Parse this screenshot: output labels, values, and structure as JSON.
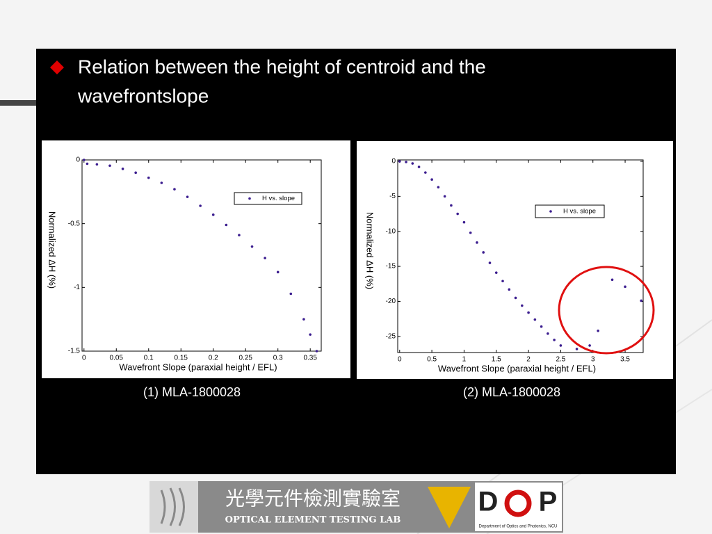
{
  "slide": {
    "title_lines": [
      "Relation between the height of centroid and the",
      "wavefrontslope"
    ],
    "captions": [
      "(1) MLA-1800028",
      "(2) MLA-1800028"
    ]
  },
  "chart_data": [
    {
      "type": "scatter",
      "xlabel": "Wavefront Slope (paraxial height / EFL)",
      "ylabel": "Normalized  ΔH (%)",
      "xlim": [
        -0.003,
        0.367
      ],
      "ylim": [
        -1.5,
        0
      ],
      "xticks": [
        0,
        0.05,
        0.1,
        0.15,
        0.2,
        0.25,
        0.3,
        0.35
      ],
      "yticks": [
        0,
        -0.5,
        -1,
        -1.5
      ],
      "legend": "upper right",
      "grid": false,
      "series": [
        {
          "name": "H vs. slope",
          "color": "#3b1d8f",
          "x": [
            0,
            0.005,
            0.02,
            0.04,
            0.06,
            0.08,
            0.1,
            0.12,
            0.14,
            0.16,
            0.18,
            0.2,
            0.22,
            0.24,
            0.26,
            0.28,
            0.3,
            0.32,
            0.34,
            0.35,
            0.36
          ],
          "values": [
            0,
            -0.03,
            -0.035,
            -0.045,
            -0.07,
            -0.1,
            -0.14,
            -0.18,
            -0.23,
            -0.29,
            -0.36,
            -0.43,
            -0.51,
            -0.59,
            -0.68,
            -0.77,
            -0.88,
            -1.05,
            -1.25,
            -1.37,
            -1.5
          ]
        }
      ]
    },
    {
      "type": "scatter",
      "xlabel": "Wavefront Slope (paraxial height / EFL)",
      "ylabel": "Normalized  ΔH (%)",
      "xlim": [
        -0.03,
        3.78
      ],
      "ylim": [
        -27.3,
        0.2
      ],
      "xticks": [
        0,
        0.5,
        1,
        1.5,
        2,
        2.5,
        3,
        3.5
      ],
      "yticks": [
        0,
        -5,
        -10,
        -15,
        -20,
        -25
      ],
      "legend": "upper right",
      "grid": false,
      "series": [
        {
          "name": "H vs. slope",
          "color": "#3b1d8f",
          "x": [
            0,
            0.1,
            0.2,
            0.3,
            0.4,
            0.5,
            0.6,
            0.7,
            0.8,
            0.9,
            1.0,
            1.1,
            1.2,
            1.3,
            1.4,
            1.5,
            1.6,
            1.7,
            1.8,
            1.9,
            2.0,
            2.1,
            2.2,
            2.3,
            2.4,
            2.5,
            2.75,
            2.95,
            3.08,
            3.3,
            3.5,
            3.75
          ],
          "values": [
            0,
            -0.1,
            -0.3,
            -0.8,
            -1.6,
            -2.6,
            -3.7,
            -5.0,
            -6.3,
            -7.5,
            -8.7,
            -10.2,
            -11.6,
            -13.0,
            -14.5,
            -15.9,
            -17.1,
            -18.3,
            -19.5,
            -20.6,
            -21.6,
            -22.6,
            -23.6,
            -24.6,
            -25.5,
            -26.3,
            -26.8,
            -26.3,
            -24.2,
            -16.9,
            -17.9,
            -19.9
          ]
        }
      ]
    }
  ],
  "footer": {
    "chinese": "光學元件檢測實驗室",
    "english": "OPTICAL ELEMENT TESTING LAB",
    "logo_d": "D",
    "logo_p": "P",
    "department": "Department of Optics and Photonics, NCU"
  }
}
